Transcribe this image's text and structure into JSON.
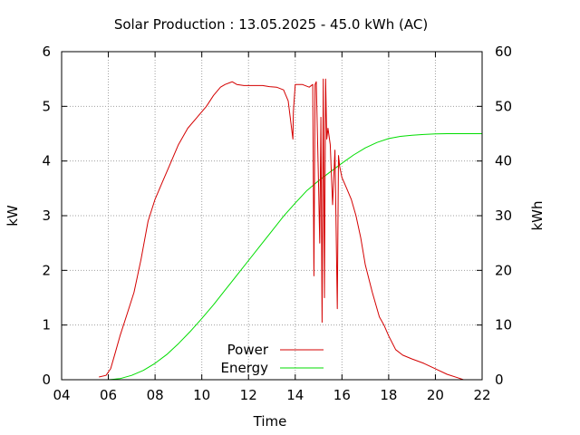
{
  "chart_data": {
    "type": "line",
    "title": "Solar Production : 13.05.2025 - 45.0 kWh (AC)",
    "xlabel": "Time",
    "ylabel": "kW",
    "y2label": "kWh",
    "xlim": [
      4,
      22
    ],
    "ylim": [
      0,
      6
    ],
    "y2lim": [
      0,
      60
    ],
    "grid": true,
    "legend_position": "bottom-center",
    "x_ticks": [
      4,
      6,
      8,
      10,
      12,
      14,
      16,
      18,
      20,
      22
    ],
    "x_tick_labels": [
      "04",
      "06",
      "08",
      "10",
      "12",
      "14",
      "16",
      "18",
      "20",
      "22"
    ],
    "y_ticks": [
      0,
      1,
      2,
      3,
      4,
      5,
      6
    ],
    "y_tick_labels": [
      "0",
      "1",
      "2",
      "3",
      "4",
      "5",
      "6"
    ],
    "y2_ticks": [
      0,
      10,
      20,
      30,
      40,
      50,
      60
    ],
    "y2_tick_labels": [
      "0",
      "10",
      "20",
      "30",
      "40",
      "50",
      "60"
    ],
    "series": [
      {
        "name": "Power",
        "axis": "y",
        "color": "#d40000",
        "x": [
          5.6,
          5.9,
          6.1,
          6.3,
          6.5,
          6.8,
          7.1,
          7.4,
          7.7,
          8.0,
          8.3,
          8.6,
          9.0,
          9.4,
          9.8,
          10.2,
          10.5,
          10.8,
          11.0,
          11.3,
          11.5,
          11.8,
          12.2,
          12.6,
          12.9,
          13.2,
          13.5,
          13.7,
          13.9,
          13.92,
          14.0,
          14.3,
          14.6,
          14.75,
          14.8,
          14.85,
          14.9,
          15.0,
          15.05,
          15.1,
          15.15,
          15.2,
          15.25,
          15.3,
          15.35,
          15.4,
          15.5,
          15.6,
          15.7,
          15.8,
          15.85,
          15.9,
          16.0,
          16.2,
          16.4,
          16.6,
          16.8,
          17.0,
          17.3,
          17.5,
          17.6,
          17.8,
          18.0,
          18.3,
          18.6,
          19.0,
          19.5,
          20.0,
          20.5,
          21.0,
          21.2
        ],
        "values": [
          0.05,
          0.08,
          0.2,
          0.5,
          0.8,
          1.2,
          1.6,
          2.2,
          2.9,
          3.3,
          3.6,
          3.9,
          4.3,
          4.6,
          4.8,
          5.0,
          5.2,
          5.35,
          5.4,
          5.45,
          5.4,
          5.38,
          5.38,
          5.38,
          5.36,
          5.35,
          5.3,
          5.1,
          4.4,
          4.9,
          5.4,
          5.4,
          5.35,
          5.4,
          1.9,
          5.4,
          5.45,
          3.5,
          2.5,
          4.8,
          1.05,
          5.5,
          1.5,
          5.5,
          4.4,
          4.6,
          4.3,
          3.2,
          4.2,
          1.3,
          4.1,
          3.9,
          3.7,
          3.5,
          3.3,
          3.0,
          2.6,
          2.1,
          1.6,
          1.3,
          1.15,
          1.0,
          0.8,
          0.55,
          0.45,
          0.38,
          0.3,
          0.2,
          0.1,
          0.03,
          0.0
        ]
      },
      {
        "name": "Energy",
        "axis": "y2",
        "color": "#00dd00",
        "x": [
          6.0,
          6.5,
          7.0,
          7.5,
          8.0,
          8.5,
          9.0,
          9.5,
          10.0,
          10.5,
          11.0,
          11.5,
          12.0,
          12.5,
          13.0,
          13.5,
          14.0,
          14.5,
          15.0,
          15.5,
          16.0,
          16.5,
          17.0,
          17.5,
          18.0,
          18.5,
          19.0,
          19.5,
          20.0,
          20.5,
          21.0,
          21.5,
          22.0
        ],
        "values": [
          0.0,
          0.2,
          0.8,
          1.7,
          3.0,
          4.6,
          6.6,
          8.8,
          11.2,
          13.7,
          16.4,
          19.1,
          21.8,
          24.5,
          27.2,
          29.9,
          32.3,
          34.6,
          36.4,
          38.0,
          39.6,
          41.1,
          42.4,
          43.4,
          44.1,
          44.5,
          44.7,
          44.85,
          44.95,
          45.0,
          45.0,
          45.0,
          45.0
        ]
      }
    ]
  }
}
